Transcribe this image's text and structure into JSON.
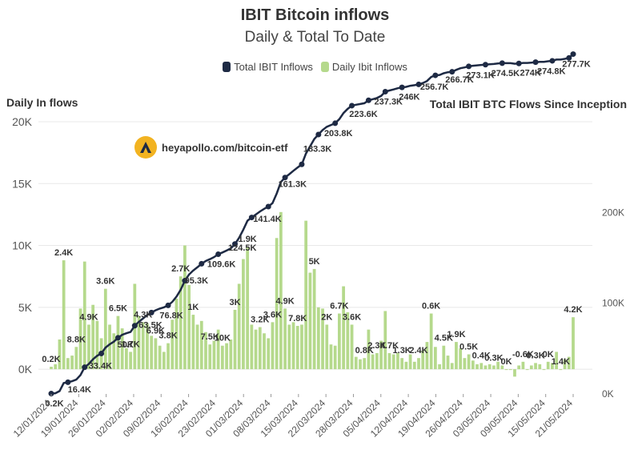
{
  "chart_data": {
    "type": "bar",
    "title": "IBIT Bitcoin inflows",
    "subtitle": "Daily & Total To Date",
    "ylabel_left": "Daily In flows",
    "ylabel_right": "Total IBIT BTC Flows Since Inception",
    "watermark": "heyapollo.com/bitcoin-etf",
    "legend": [
      "Total IBIT Inflows",
      "Daily Ibit Inflows"
    ],
    "colors": {
      "line": "#1e2a44",
      "bars": "#b5d98c"
    },
    "ylim_left": [
      -2000,
      20000
    ],
    "yticks_left": [
      "0K",
      "5K",
      "10K",
      "15K",
      "20K"
    ],
    "ylim_right": [
      0,
      300000
    ],
    "yticks_right": [
      "0K",
      "100K",
      "200K"
    ],
    "x_dates": [
      "12/01/2024",
      "19/01/2024",
      "26/01/2024",
      "02/02/2024",
      "09/02/2024",
      "16/02/2024",
      "23/02/2024",
      "01/03/2024",
      "08/03/2024",
      "15/03/2024",
      "22/03/2024",
      "28/03/2024",
      "05/04/2024",
      "12/04/2024",
      "19/04/2024",
      "26/04/2024",
      "03/05/2024",
      "09/05/2024",
      "15/05/2024",
      "21/05/2024"
    ],
    "daily_values": [
      200,
      400,
      2400,
      8800,
      900,
      1100,
      1800,
      4900,
      8700,
      3600,
      5200,
      3900,
      2500,
      6500,
      3600,
      2900,
      4300,
      3300,
      1700,
      1400,
      6900,
      4300,
      3800,
      3700,
      2700,
      2500,
      1900,
      1400,
      2100,
      4000,
      5700,
      7500,
      10000,
      6800,
      4400,
      3600,
      3900,
      3000,
      2000,
      2300,
      3200,
      1900,
      2100,
      2400,
      4800,
      6900,
      8900,
      9900,
      3600,
      3200,
      3400,
      2900,
      2500,
      3800,
      10600,
      12700,
      4900,
      3600,
      3800,
      3500,
      3600,
      12000,
      7800,
      8100,
      5000,
      4900,
      3600,
      2000,
      1900,
      4500,
      6700,
      4600,
      3600,
      1000,
      800,
      900,
      3200,
      1200,
      1300,
      2300,
      4700,
      1300,
      1200,
      1300,
      900,
      600,
      1200,
      600,
      900,
      1500,
      2200,
      4500,
      1800,
      400,
      1900,
      1100,
      500,
      2200,
      1700,
      900,
      1200,
      700,
      400,
      500,
      300,
      400,
      300,
      600,
      300,
      0,
      0,
      -600,
      300,
      600,
      0,
      300,
      500,
      400,
      0,
      600,
      500,
      1400,
      0,
      800,
      1000,
      4200
    ],
    "cumulative_start": 200,
    "daily_labels": [
      "0.2K",
      "2.4K",
      "8.8K",
      "4.9K",
      "3.6K",
      "6.5K",
      "1.7K",
      "4.3K",
      "6.9K",
      "3.8K",
      "2.7K",
      "1K",
      "7.5K",
      "10K",
      "3K",
      "1.9K",
      "3.2K",
      "3.6K",
      "4.9K",
      "7.8K",
      "5K",
      "2K",
      "6.7K",
      "3.6K",
      "0.8K",
      "2.3K",
      "4.7K",
      "1.3K",
      "2.4K",
      "0.6K",
      "4.5K",
      "1.9K",
      "0.5K",
      "0.4K",
      "0.3K",
      "0K",
      "-0.6K",
      "0.3K",
      "0K",
      "1.4K",
      "4.2K"
    ],
    "total_labels": [
      "0.2K",
      "16.4K",
      "33.4K",
      "50K",
      "63.5K",
      "76.8K",
      "95.3K",
      "109.6K",
      "124.5K",
      "141.4K",
      "161.3K",
      "183.3K",
      "203.8K",
      "223.6K",
      "237.3K",
      "246K",
      "256.7K",
      "266.7K",
      "273.1K",
      "274.5K",
      "274K",
      "274.8K",
      "277.7K"
    ]
  }
}
